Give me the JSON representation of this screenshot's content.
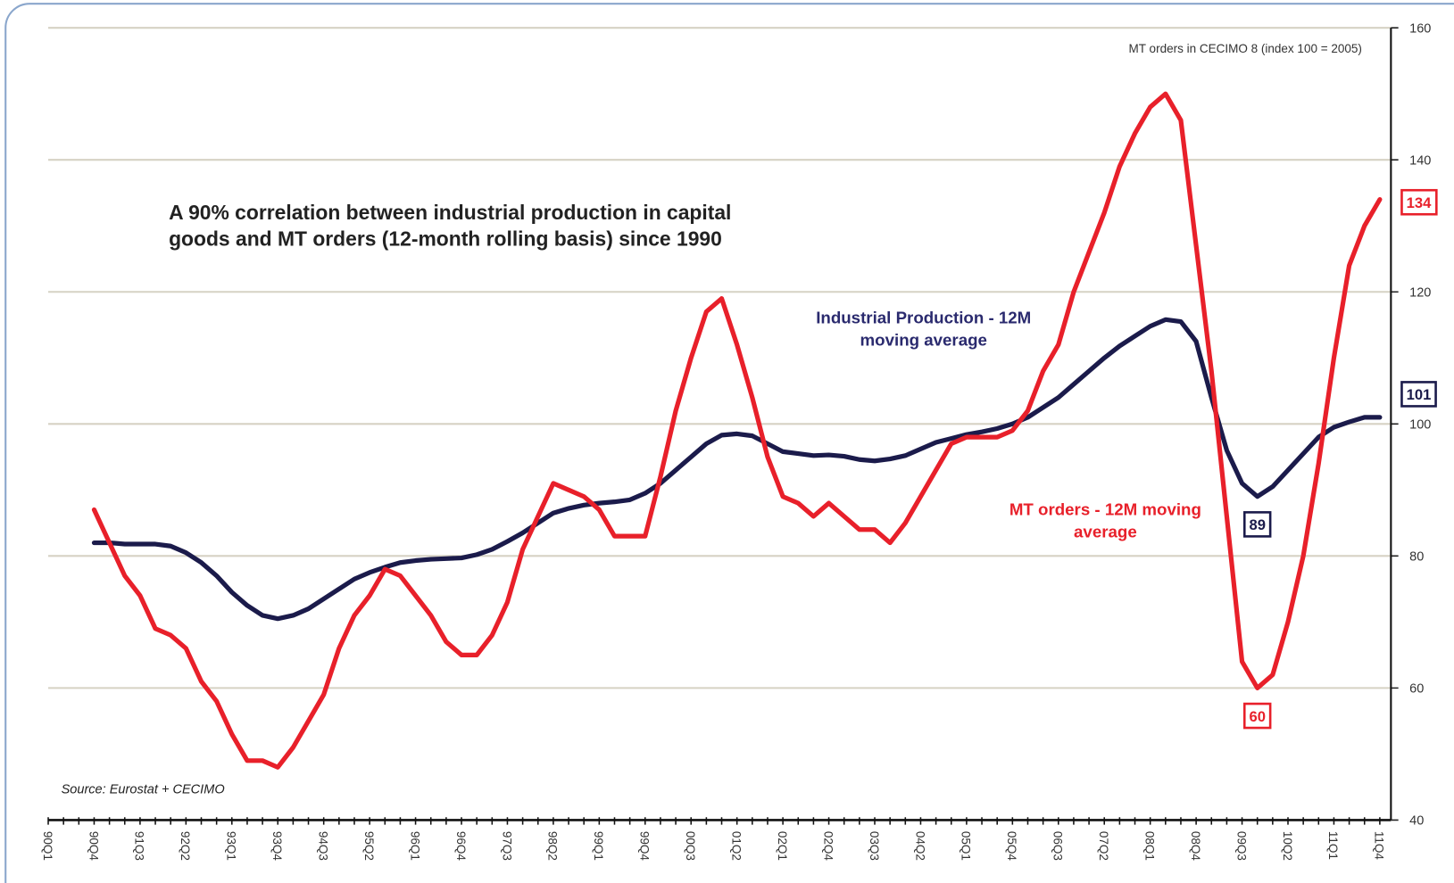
{
  "chart_data": {
    "type": "line",
    "title": "A 90% correlation between industrial production in capital goods and MT orders (12-month rolling basis) since 1990",
    "y_axis_label": "MT orders in CECIMO 8 (index 100 = 2005)",
    "source": "Source: Eurostat + CECIMO",
    "categories": [
      "90Q1",
      null,
      null,
      "90Q4",
      null,
      null,
      "91Q3",
      null,
      null,
      "92Q2",
      null,
      null,
      "93Q1",
      null,
      null,
      "93Q4",
      null,
      null,
      "94Q3",
      null,
      null,
      "95Q2",
      null,
      null,
      "96Q1",
      null,
      null,
      "96Q4",
      null,
      null,
      "97Q3",
      null,
      null,
      "98Q2",
      null,
      null,
      "99Q1",
      null,
      null,
      "99Q4",
      null,
      null,
      "00Q3",
      null,
      null,
      "01Q2",
      null,
      null,
      "02Q1",
      null,
      null,
      "02Q4",
      null,
      null,
      "03Q3",
      null,
      null,
      "04Q2",
      null,
      null,
      "05Q1",
      null,
      null,
      "05Q4",
      null,
      null,
      "06Q3",
      null,
      null,
      "07Q2",
      null,
      null,
      "08Q1",
      null,
      null,
      "08Q4",
      null,
      null,
      "09Q3",
      null,
      null,
      "10Q2",
      null,
      null,
      "11Q1",
      null,
      null,
      "11Q4"
    ],
    "series": [
      {
        "name": "MT orders - 12M moving average",
        "color": "#e8202a",
        "values": [
          null,
          null,
          null,
          87,
          82,
          77,
          74,
          69,
          68,
          66,
          61,
          58,
          53,
          49,
          49,
          48,
          51,
          55,
          59,
          66,
          71,
          74,
          78,
          77,
          74,
          71,
          67,
          65,
          65,
          68,
          73,
          81,
          86,
          91,
          90,
          89,
          87,
          83,
          83,
          83,
          92,
          102,
          110,
          117,
          119,
          112,
          104,
          95,
          89,
          88,
          86,
          88,
          86,
          84,
          84,
          82,
          85,
          89,
          93,
          97,
          98,
          98,
          98,
          99,
          102,
          108,
          112,
          120,
          126,
          132,
          139,
          144,
          148,
          150,
          146,
          127,
          108,
          86,
          64,
          60,
          62,
          70,
          80,
          94,
          110,
          124,
          130,
          134
        ],
        "value_labels": [
          null,
          null,
          null,
          null,
          null,
          null,
          null,
          null,
          null,
          null,
          null,
          null,
          null,
          null,
          null,
          null,
          null,
          null,
          null,
          null,
          null,
          null,
          null,
          null,
          null,
          null,
          null,
          null,
          null,
          null,
          null,
          null,
          null,
          null,
          null,
          null,
          null,
          null,
          null,
          null,
          null,
          null,
          null,
          null,
          null,
          null,
          null,
          null,
          null,
          null,
          null,
          null,
          null,
          null,
          null,
          null,
          null,
          null,
          null,
          null,
          null,
          null,
          null,
          null,
          null,
          null,
          null,
          null,
          null,
          null,
          null,
          null,
          null,
          null,
          null,
          null,
          null,
          null,
          null,
          "60",
          null,
          null,
          null,
          null,
          null,
          null,
          null,
          "134"
        ]
      },
      {
        "name": "Industrial Production - 12M moving average",
        "color": "#1b1b4b",
        "values": [
          null,
          null,
          null,
          82,
          82,
          81.8,
          81.8,
          81.8,
          81.5,
          80.5,
          79,
          77,
          74.5,
          72.5,
          71,
          70.5,
          71,
          72,
          73.5,
          75,
          76.5,
          77.5,
          78.3,
          79,
          79.3,
          79.5,
          79.6,
          79.7,
          80.2,
          81,
          82.2,
          83.5,
          85,
          86.5,
          87.2,
          87.7,
          88,
          88.2,
          88.5,
          89.5,
          91,
          93,
          95,
          97,
          98.3,
          98.5,
          98.2,
          97,
          95.8,
          95.5,
          95.2,
          95.3,
          95.1,
          94.6,
          94.4,
          94.7,
          95.2,
          96.2,
          97.2,
          97.8,
          98.4,
          98.8,
          99.3,
          100,
          101,
          102.5,
          104,
          106,
          108,
          110,
          111.8,
          113.3,
          114.8,
          115.8,
          115.5,
          112.5,
          104,
          96,
          91,
          89,
          90.5,
          93,
          95.5,
          98,
          99.5,
          100.3,
          101,
          101
        ],
        "value_labels": [
          null,
          null,
          null,
          null,
          null,
          null,
          null,
          null,
          null,
          null,
          null,
          null,
          null,
          null,
          null,
          null,
          null,
          null,
          null,
          null,
          null,
          null,
          null,
          null,
          null,
          null,
          null,
          null,
          null,
          null,
          null,
          null,
          null,
          null,
          null,
          null,
          null,
          null,
          null,
          null,
          null,
          null,
          null,
          null,
          null,
          null,
          null,
          null,
          null,
          null,
          null,
          null,
          null,
          null,
          null,
          null,
          null,
          null,
          null,
          null,
          null,
          null,
          null,
          null,
          null,
          null,
          null,
          null,
          null,
          null,
          null,
          null,
          null,
          null,
          null,
          null,
          null,
          null,
          null,
          "89",
          null,
          null,
          null,
          null,
          null,
          null,
          null,
          "101"
        ]
      }
    ],
    "ylim": [
      40,
      160
    ],
    "yticks": [
      40,
      60,
      80,
      100,
      120,
      140,
      160
    ],
    "grid": true
  }
}
